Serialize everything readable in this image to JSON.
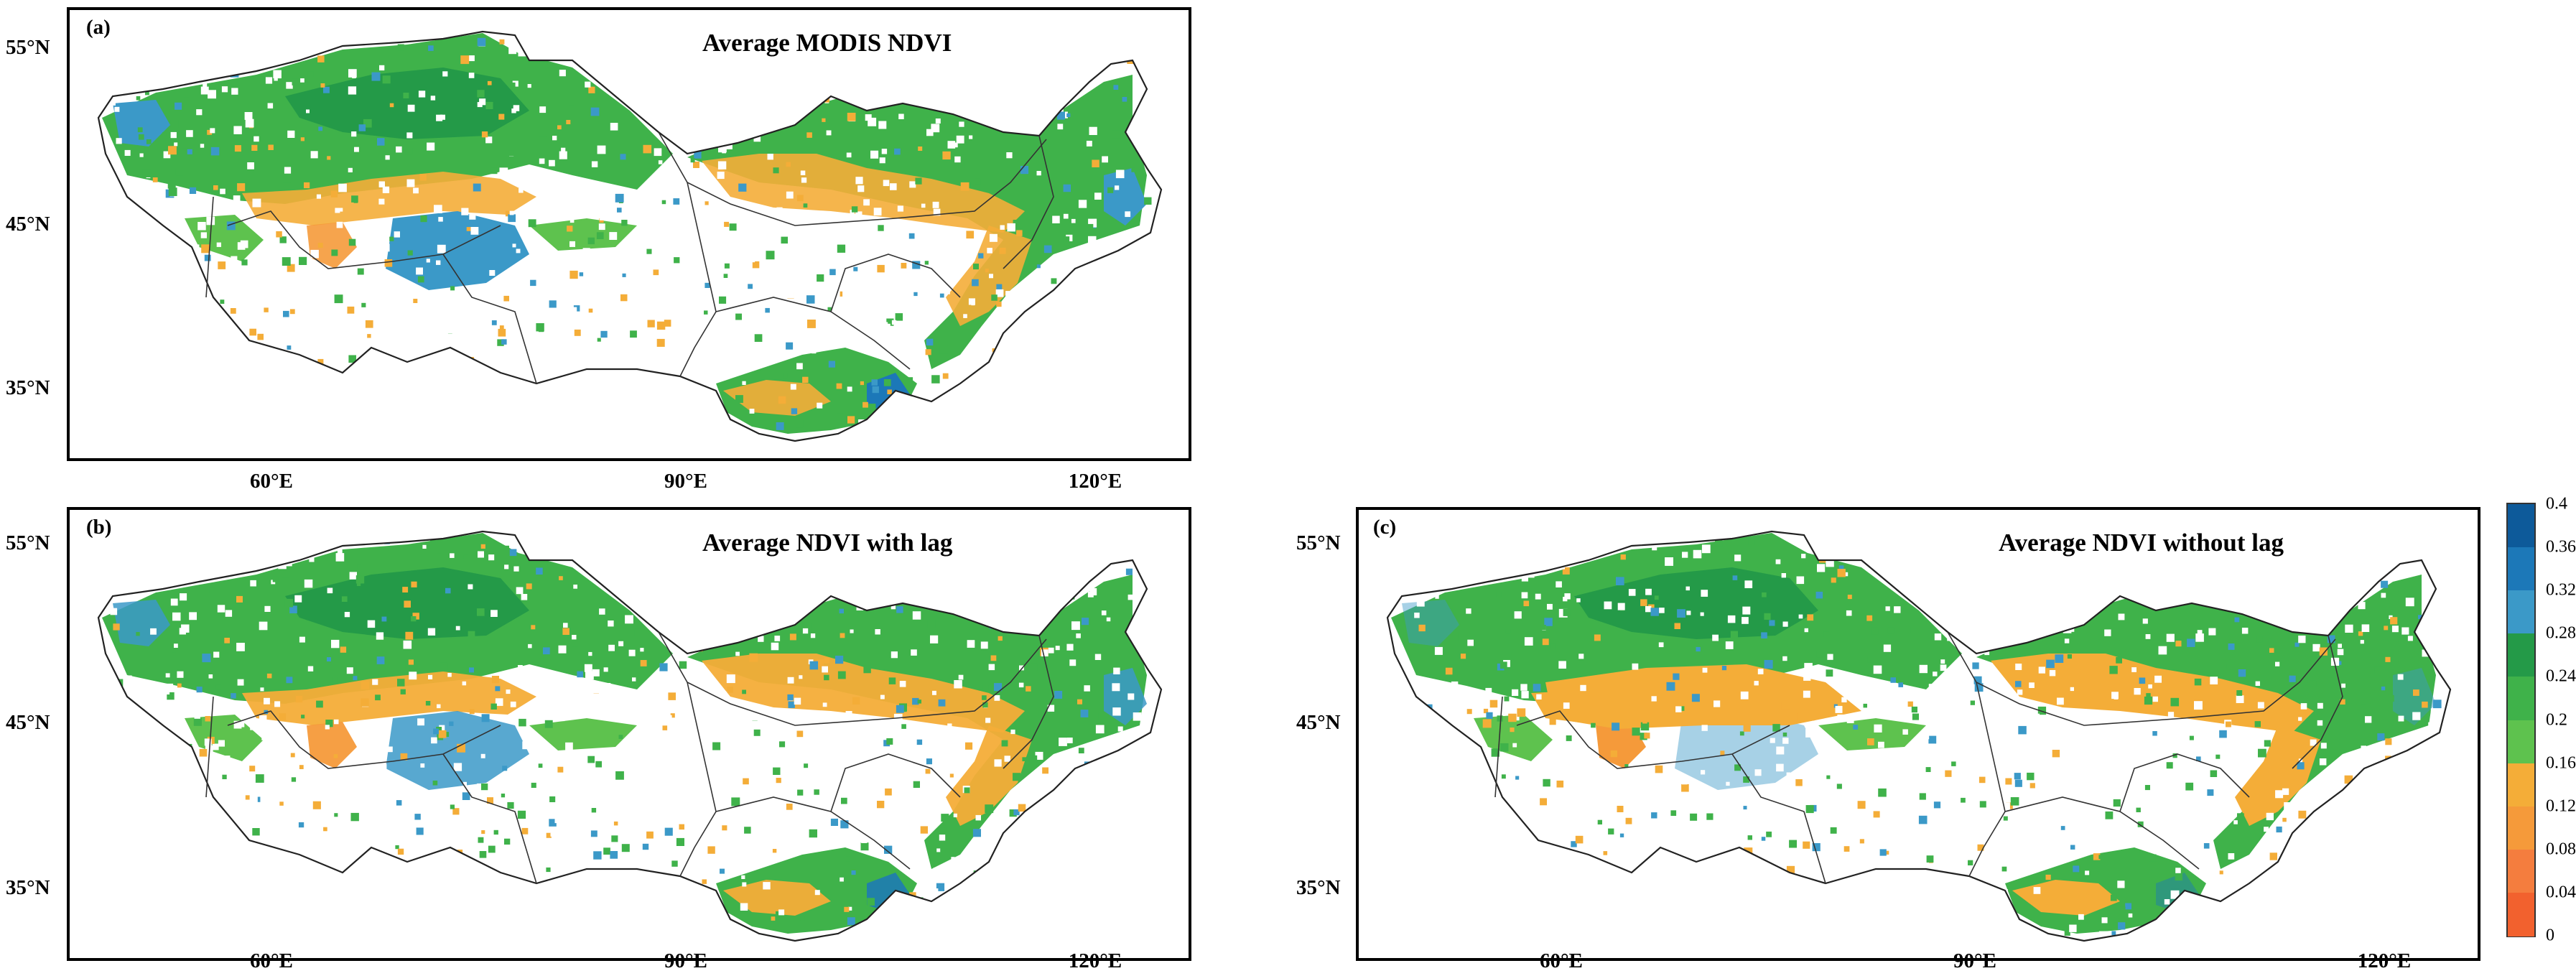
{
  "panels": [
    {
      "label": "(a)",
      "title": "Average MODIS NDVI"
    },
    {
      "label": "(b)",
      "title": "Average  NDVI with lag"
    },
    {
      "label": "(c)",
      "title": "Average  NDVI without lag"
    }
  ],
  "axes": {
    "y_ticks": [
      "55°N",
      "45°N",
      "35°N"
    ],
    "x_ticks": [
      "60°E",
      "90°E",
      "120°E"
    ]
  },
  "colorbar": {
    "labels": [
      "0.4",
      "0.36",
      "0.32",
      "0.28",
      "0.24",
      "0.2",
      "0.16",
      "0.12",
      "0.08",
      "0.04",
      "0"
    ],
    "colors": [
      "#0d5a9a",
      "#1c78b8",
      "#3b99c8",
      "#249a48",
      "#3fb24a",
      "#5ec24e",
      "#f4ad38",
      "#f59a3a",
      "#f47d3e",
      "#f2612e"
    ]
  }
}
